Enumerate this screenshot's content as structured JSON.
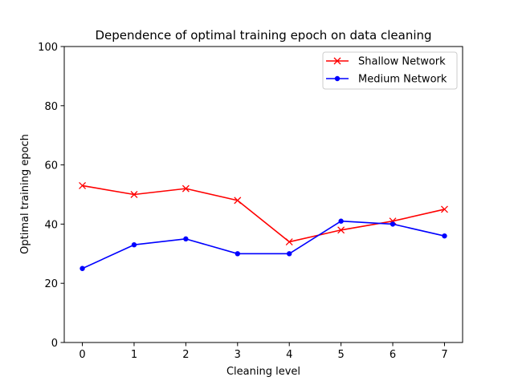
{
  "chart_data": {
    "type": "line",
    "title": "Dependence of optimal training epoch on data cleaning",
    "xlabel": "Cleaning level",
    "ylabel": "Optimal training epoch",
    "x": [
      0,
      1,
      2,
      3,
      4,
      5,
      6,
      7
    ],
    "xlim": [
      -0.35,
      7.35
    ],
    "ylim": [
      0,
      100
    ],
    "xticks": [
      "0",
      "1",
      "2",
      "3",
      "4",
      "5",
      "6",
      "7"
    ],
    "yticks": [
      "0",
      "20",
      "40",
      "60",
      "80",
      "100"
    ],
    "grid": false,
    "legend_position": "top-right",
    "series": [
      {
        "name": "Shallow Network",
        "color": "#ff0000",
        "marker": "x",
        "values": [
          53,
          50,
          52,
          48,
          34,
          38,
          41,
          45
        ]
      },
      {
        "name": "Medium Network",
        "color": "#0000ff",
        "marker": "dot",
        "values": [
          25,
          33,
          35,
          30,
          30,
          41,
          40,
          36
        ]
      }
    ]
  }
}
